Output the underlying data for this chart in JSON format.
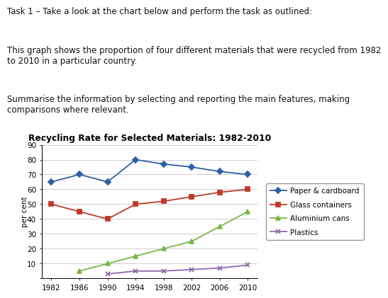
{
  "title": "Recycling Rate for Selected Materials: 1982-2010",
  "ylabel": "per cent",
  "years": [
    1982,
    1986,
    1990,
    1994,
    1998,
    2002,
    2006,
    2010
  ],
  "series": {
    "Paper & cardboard": {
      "values": [
        65,
        70,
        65,
        80,
        77,
        75,
        72,
        70
      ],
      "color": "#2e5fa3",
      "marker": "D",
      "linestyle": "-"
    },
    "Glass containers": {
      "values": [
        50,
        45,
        40,
        50,
        52,
        55,
        58,
        60
      ],
      "color": "#c0392b",
      "marker": "s",
      "linestyle": "-"
    },
    "Aluminium cans": {
      "values": [
        null,
        5,
        10,
        15,
        20,
        25,
        35,
        45
      ],
      "color": "#7ab648",
      "marker": "^",
      "linestyle": "-"
    },
    "Plastics": {
      "values": [
        null,
        null,
        3,
        5,
        5,
        6,
        7,
        9
      ],
      "color": "#8b6aae",
      "marker": "x",
      "linestyle": "-"
    }
  },
  "ylim": [
    0,
    90
  ],
  "yticks": [
    0,
    10,
    20,
    30,
    40,
    50,
    60,
    70,
    80,
    90
  ],
  "background_color": "#ffffff",
  "text_line1": "Task 1 – Take a look at the chart below and perform the task as outlined:",
  "text_line2": "This graph shows the proportion of four different materials that were recycled from 1982\nto 2010 in a particular country.",
  "text_line3": "Summarise the information by selecting and reporting the main features, making\ncomparisons where relevant.",
  "text_fontsize": 8.5,
  "chart_title_fontsize": 8.8,
  "axis_fontsize": 7.5,
  "legend_fontsize": 7.5
}
